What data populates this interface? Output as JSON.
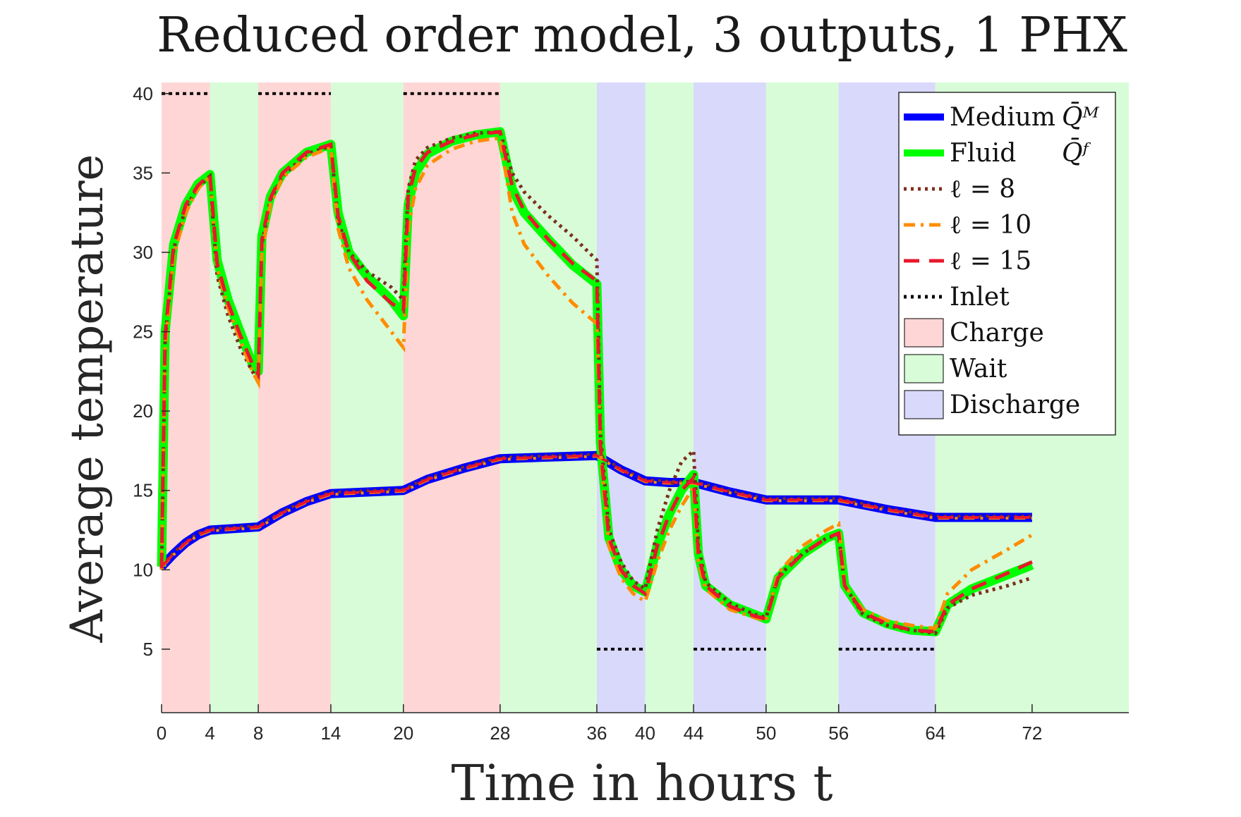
{
  "chart_data": {
    "type": "line",
    "title": "Reduced order model, 3 outputs, 1 PHX",
    "xlabel": "Time in hours t",
    "ylabel": "Average temperature",
    "xlim": [
      0,
      80
    ],
    "ylim": [
      1,
      40.7
    ],
    "xticks": [
      0,
      4,
      8,
      14,
      20,
      28,
      36,
      40,
      44,
      50,
      56,
      64,
      72
    ],
    "yticks": [
      5,
      10,
      15,
      20,
      25,
      30,
      35,
      40
    ],
    "grid": false,
    "legend_position": "top-right",
    "phases": [
      {
        "name": "Charge",
        "start": 0,
        "end": 4
      },
      {
        "name": "Wait",
        "start": 4,
        "end": 8
      },
      {
        "name": "Charge",
        "start": 8,
        "end": 14
      },
      {
        "name": "Wait",
        "start": 14,
        "end": 20
      },
      {
        "name": "Charge",
        "start": 20,
        "end": 28
      },
      {
        "name": "Wait",
        "start": 28,
        "end": 36
      },
      {
        "name": "Discharge",
        "start": 36,
        "end": 40
      },
      {
        "name": "Wait",
        "start": 40,
        "end": 44
      },
      {
        "name": "Discharge",
        "start": 44,
        "end": 50
      },
      {
        "name": "Wait",
        "start": 50,
        "end": 56
      },
      {
        "name": "Discharge",
        "start": 56,
        "end": 64
      },
      {
        "name": "Wait",
        "start": 64,
        "end": 80
      }
    ],
    "phase_colors": {
      "Charge": "#ffd6d6",
      "Wait": "#d8fcd8",
      "Discharge": "#d9d9fb"
    },
    "inlet_segments": [
      {
        "x": [
          0,
          4
        ],
        "y": 40
      },
      {
        "x": [
          8,
          14
        ],
        "y": 40
      },
      {
        "x": [
          20,
          28
        ],
        "y": 40
      },
      {
        "x": [
          36,
          40
        ],
        "y": 5
      },
      {
        "x": [
          44,
          50
        ],
        "y": 5
      },
      {
        "x": [
          56,
          64
        ],
        "y": 5
      }
    ],
    "series": [
      {
        "name": "Medium",
        "symbol": "Q̄ᴹ",
        "color": "#0000ff",
        "style": "solid",
        "points": [
          [
            0,
            10.2
          ],
          [
            1,
            11.0
          ],
          [
            2,
            11.7
          ],
          [
            3,
            12.2
          ],
          [
            4,
            12.5
          ],
          [
            6,
            12.6
          ],
          [
            8,
            12.7
          ],
          [
            10,
            13.6
          ],
          [
            12,
            14.3
          ],
          [
            14,
            14.8
          ],
          [
            17,
            14.9
          ],
          [
            20,
            15.0
          ],
          [
            22,
            15.7
          ],
          [
            25,
            16.4
          ],
          [
            28,
            17.0
          ],
          [
            32,
            17.1
          ],
          [
            36,
            17.2
          ],
          [
            38,
            16.3
          ],
          [
            40,
            15.6
          ],
          [
            42,
            15.5
          ],
          [
            44,
            15.5
          ],
          [
            47,
            14.9
          ],
          [
            50,
            14.4
          ],
          [
            53,
            14.4
          ],
          [
            56,
            14.4
          ],
          [
            60,
            13.8
          ],
          [
            64,
            13.3
          ],
          [
            68,
            13.3
          ],
          [
            72,
            13.3
          ]
        ]
      },
      {
        "name": "Fluid",
        "symbol": "Q̄ᶠ",
        "color": "#00ff00",
        "style": "solid",
        "points": [
          [
            0,
            10.2
          ],
          [
            0.3,
            25.0
          ],
          [
            1,
            30.5
          ],
          [
            2,
            33.0
          ],
          [
            3,
            34.3
          ],
          [
            4,
            34.9
          ],
          [
            4.6,
            29.5
          ],
          [
            5.5,
            27.0
          ],
          [
            6.5,
            25.0
          ],
          [
            7.5,
            23.0
          ],
          [
            8,
            22.5
          ],
          [
            8.3,
            31.0
          ],
          [
            9,
            33.5
          ],
          [
            10,
            35.0
          ],
          [
            12,
            36.3
          ],
          [
            14,
            36.8
          ],
          [
            14.6,
            32.5
          ],
          [
            15.5,
            30.0
          ],
          [
            17,
            28.5
          ],
          [
            19,
            27.0
          ],
          [
            20,
            26.0
          ],
          [
            20.4,
            33.0
          ],
          [
            21,
            35.0
          ],
          [
            22,
            36.2
          ],
          [
            24,
            37.0
          ],
          [
            26,
            37.4
          ],
          [
            28,
            37.6
          ],
          [
            29,
            34.0
          ],
          [
            30,
            32.5
          ],
          [
            32,
            30.8
          ],
          [
            34,
            29.2
          ],
          [
            36,
            28.0
          ],
          [
            36.3,
            18.0
          ],
          [
            37,
            12.0
          ],
          [
            38,
            10.0
          ],
          [
            39,
            9.0
          ],
          [
            40,
            8.6
          ],
          [
            41,
            11.5
          ],
          [
            42,
            13.5
          ],
          [
            43,
            15.0
          ],
          [
            44,
            16.0
          ],
          [
            44.4,
            11.0
          ],
          [
            45,
            9.0
          ],
          [
            47,
            7.8
          ],
          [
            49,
            7.2
          ],
          [
            50,
            6.9
          ],
          [
            51,
            9.5
          ],
          [
            53,
            11.0
          ],
          [
            55,
            12.0
          ],
          [
            56,
            12.3
          ],
          [
            56.5,
            9.0
          ],
          [
            58,
            7.3
          ],
          [
            60,
            6.6
          ],
          [
            62,
            6.2
          ],
          [
            64,
            6.1
          ],
          [
            65,
            7.8
          ],
          [
            67,
            8.8
          ],
          [
            70,
            9.7
          ],
          [
            72,
            10.3
          ]
        ]
      },
      {
        "name": "ℓ = 8",
        "color": "#7e2f1e",
        "style": "dotted",
        "points": [
          [
            0,
            10.0
          ],
          [
            0.3,
            24.5
          ],
          [
            1,
            30.2
          ],
          [
            2,
            32.8
          ],
          [
            3,
            34.1
          ],
          [
            4,
            34.8
          ],
          [
            4.6,
            28.5
          ],
          [
            5.5,
            26.0
          ],
          [
            6.5,
            24.0
          ],
          [
            7.5,
            22.5
          ],
          [
            8,
            22.0
          ],
          [
            8.3,
            30.5
          ],
          [
            9,
            33.3
          ],
          [
            10,
            34.8
          ],
          [
            12,
            36.2
          ],
          [
            14,
            36.7
          ],
          [
            14.6,
            32.0
          ],
          [
            15.5,
            30.0
          ],
          [
            17,
            28.8
          ],
          [
            19,
            27.8
          ],
          [
            20,
            27.0
          ],
          [
            20.4,
            34.0
          ],
          [
            21,
            35.8
          ],
          [
            22,
            36.6
          ],
          [
            24,
            37.2
          ],
          [
            26,
            37.5
          ],
          [
            28,
            37.6
          ],
          [
            29,
            35.0
          ],
          [
            30,
            33.8
          ],
          [
            32,
            32.3
          ],
          [
            34,
            31.0
          ],
          [
            36,
            29.5
          ],
          [
            36.3,
            18.5
          ],
          [
            37,
            12.5
          ],
          [
            38,
            10.5
          ],
          [
            39,
            9.3
          ],
          [
            40,
            8.8
          ],
          [
            41,
            12.5
          ],
          [
            42,
            15.0
          ],
          [
            43,
            16.8
          ],
          [
            44,
            17.5
          ],
          [
            44.4,
            11.5
          ],
          [
            45,
            9.2
          ],
          [
            47,
            7.9
          ],
          [
            49,
            7.2
          ],
          [
            50,
            7.0
          ],
          [
            51,
            9.6
          ],
          [
            53,
            11.0
          ],
          [
            55,
            12.0
          ],
          [
            56,
            12.2
          ],
          [
            56.5,
            9.0
          ],
          [
            58,
            7.2
          ],
          [
            60,
            6.5
          ],
          [
            62,
            6.2
          ],
          [
            64,
            6.0
          ],
          [
            65,
            7.6
          ],
          [
            67,
            8.4
          ],
          [
            70,
            9.0
          ],
          [
            72,
            9.5
          ]
        ]
      },
      {
        "name": "ℓ = 10",
        "color": "#ff8c00",
        "style": "dashdot",
        "points": [
          [
            0,
            10.0
          ],
          [
            0.3,
            24.0
          ],
          [
            1,
            29.8
          ],
          [
            2,
            32.5
          ],
          [
            3,
            34.0
          ],
          [
            4,
            34.8
          ],
          [
            4.6,
            29.0
          ],
          [
            5.5,
            26.5
          ],
          [
            6.5,
            24.5
          ],
          [
            7.5,
            22.5
          ],
          [
            8,
            21.8
          ],
          [
            8.3,
            30.0
          ],
          [
            9,
            33.0
          ],
          [
            10,
            34.7
          ],
          [
            12,
            36.0
          ],
          [
            14,
            36.6
          ],
          [
            14.6,
            31.5
          ],
          [
            15.5,
            29.0
          ],
          [
            17,
            27.0
          ],
          [
            19,
            25.0
          ],
          [
            20,
            24.0
          ],
          [
            20.4,
            31.5
          ],
          [
            21,
            34.0
          ],
          [
            22,
            35.5
          ],
          [
            24,
            36.5
          ],
          [
            26,
            37.0
          ],
          [
            28,
            37.2
          ],
          [
            29,
            32.5
          ],
          [
            30,
            30.5
          ],
          [
            32,
            28.5
          ],
          [
            34,
            26.8
          ],
          [
            36,
            25.5
          ],
          [
            36.3,
            17.5
          ],
          [
            37,
            11.5
          ],
          [
            38,
            9.5
          ],
          [
            39,
            8.5
          ],
          [
            40,
            8.0
          ],
          [
            41,
            10.5
          ],
          [
            42,
            12.5
          ],
          [
            43,
            14.0
          ],
          [
            44,
            15.2
          ],
          [
            44.4,
            10.5
          ],
          [
            45,
            8.8
          ],
          [
            47,
            7.5
          ],
          [
            49,
            7.0
          ],
          [
            50,
            6.8
          ],
          [
            51,
            9.8
          ],
          [
            53,
            11.5
          ],
          [
            55,
            12.5
          ],
          [
            56,
            12.9
          ],
          [
            56.5,
            9.0
          ],
          [
            58,
            7.5
          ],
          [
            60,
            6.8
          ],
          [
            62,
            6.5
          ],
          [
            64,
            6.3
          ],
          [
            65,
            8.5
          ],
          [
            67,
            10.0
          ],
          [
            70,
            11.3
          ],
          [
            72,
            12.2
          ]
        ]
      },
      {
        "name": "ℓ = 15",
        "color": "#e8182c",
        "style": "dashed",
        "points": [
          [
            0,
            10.1
          ],
          [
            0.3,
            24.8
          ],
          [
            1,
            30.4
          ],
          [
            2,
            33.0
          ],
          [
            3,
            34.2
          ],
          [
            4,
            34.9
          ],
          [
            4.6,
            29.3
          ],
          [
            5.5,
            26.8
          ],
          [
            6.5,
            24.8
          ],
          [
            7.5,
            23.0
          ],
          [
            8,
            22.3
          ],
          [
            8.3,
            30.8
          ],
          [
            9,
            33.4
          ],
          [
            10,
            35.0
          ],
          [
            12,
            36.3
          ],
          [
            14,
            36.8
          ],
          [
            14.6,
            32.3
          ],
          [
            15.5,
            30.0
          ],
          [
            17,
            28.2
          ],
          [
            19,
            26.8
          ],
          [
            20,
            26.3
          ],
          [
            20.4,
            33.5
          ],
          [
            21,
            35.3
          ],
          [
            22,
            36.3
          ],
          [
            24,
            37.0
          ],
          [
            26,
            37.4
          ],
          [
            28,
            37.6
          ],
          [
            29,
            34.2
          ],
          [
            30,
            32.6
          ],
          [
            32,
            30.8
          ],
          [
            34,
            29.3
          ],
          [
            36,
            28.2
          ],
          [
            36.3,
            17.8
          ],
          [
            37,
            12.0
          ],
          [
            38,
            10.0
          ],
          [
            39,
            9.0
          ],
          [
            40,
            8.5
          ],
          [
            41,
            11.5
          ],
          [
            42,
            13.5
          ],
          [
            43,
            15.0
          ],
          [
            44,
            15.8
          ],
          [
            44.4,
            11.0
          ],
          [
            45,
            9.0
          ],
          [
            47,
            7.7
          ],
          [
            49,
            7.1
          ],
          [
            50,
            6.9
          ],
          [
            51,
            9.5
          ],
          [
            53,
            11.0
          ],
          [
            55,
            12.0
          ],
          [
            56,
            12.3
          ],
          [
            56.5,
            9.0
          ],
          [
            58,
            7.3
          ],
          [
            60,
            6.6
          ],
          [
            62,
            6.2
          ],
          [
            64,
            6.1
          ],
          [
            65,
            7.8
          ],
          [
            67,
            8.8
          ],
          [
            70,
            9.8
          ],
          [
            72,
            10.5
          ]
        ]
      }
    ],
    "medium_variants": [
      {
        "color": "#7e2f1e",
        "style": "dotted"
      },
      {
        "color": "#ff8c00",
        "style": "dashdot"
      },
      {
        "color": "#e8182c",
        "style": "dashed"
      }
    ],
    "legend": [
      {
        "label": "Medium",
        "symbol": "Q̄ᴹ",
        "kind": "line",
        "color": "#0000ff",
        "style": "solid"
      },
      {
        "label": "Fluid",
        "symbol": "Q̄ᶠ",
        "kind": "line",
        "color": "#00ff00",
        "style": "solid"
      },
      {
        "label": "ℓ = 8",
        "symbol": "",
        "kind": "line",
        "color": "#7e2f1e",
        "style": "dotted"
      },
      {
        "label": "ℓ = 10",
        "symbol": "",
        "kind": "line",
        "color": "#ff8c00",
        "style": "dashdot"
      },
      {
        "label": "ℓ = 15",
        "symbol": "",
        "kind": "line",
        "color": "#e8182c",
        "style": "dashed"
      },
      {
        "label": "Inlet",
        "symbol": "",
        "kind": "line",
        "color": "#000000",
        "style": "dotted"
      },
      {
        "label": "Charge",
        "symbol": "",
        "kind": "patch",
        "color": "#ffd6d6",
        "style": "fill"
      },
      {
        "label": "Wait",
        "symbol": "",
        "kind": "patch",
        "color": "#d8fcd8",
        "style": "fill"
      },
      {
        "label": "Discharge",
        "symbol": "",
        "kind": "patch",
        "color": "#d9d9fb",
        "style": "fill"
      }
    ]
  }
}
